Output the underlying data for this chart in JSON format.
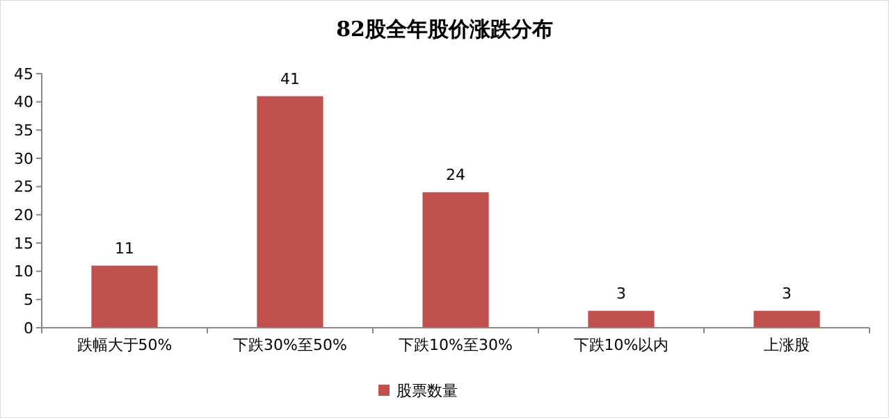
{
  "chart_data": {
    "type": "bar",
    "title": "82股全年股价涨跌分布",
    "categories": [
      "跌幅大于50%",
      "下跌30%至50%",
      "下跌10%至30%",
      "下跌10%以内",
      "上涨股"
    ],
    "series": [
      {
        "name": "股票数量",
        "color": "#c0504d",
        "values": [
          11,
          41,
          24,
          3,
          3
        ]
      }
    ],
    "ylim": [
      0,
      45
    ],
    "yticks": [
      0,
      5,
      10,
      15,
      20,
      25,
      30,
      35,
      40,
      45
    ],
    "data_labels": true,
    "legend": "bottom",
    "grid": false
  }
}
